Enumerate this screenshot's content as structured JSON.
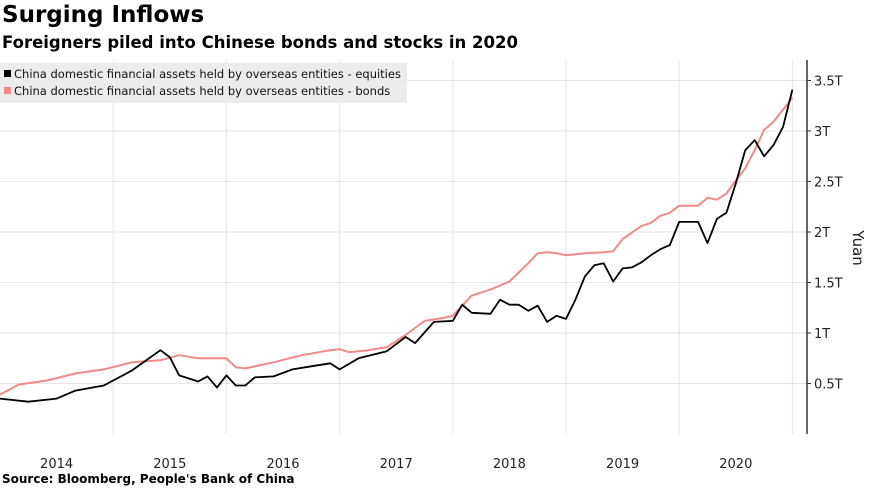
{
  "title": "Surging Inflows",
  "subtitle": "Foreigners piled into Chinese bonds and stocks in 2020",
  "source": "Source: Bloomberg, People's Bank of China",
  "chart_data": {
    "type": "line",
    "title": "Surging Inflows",
    "ylabel": "Yuan",
    "ylim": [
      0,
      3.7
    ],
    "y_ticks": [
      {
        "v": 0.5,
        "label": "0.5T"
      },
      {
        "v": 1,
        "label": "1T"
      },
      {
        "v": 1.5,
        "label": "1.5T"
      },
      {
        "v": 2,
        "label": "2T"
      },
      {
        "v": 2.5,
        "label": "2.5T"
      },
      {
        "v": 3,
        "label": "3T"
      },
      {
        "v": 3.5,
        "label": "3.5T"
      }
    ],
    "x_ticks": [
      "2014",
      "2015",
      "2016",
      "2017",
      "2018",
      "2019",
      "2020"
    ],
    "xlim": [
      "2014-01",
      "2021-02"
    ],
    "y_axis_position": "right",
    "grid": true,
    "legend_position": "top-left",
    "series": [
      {
        "name": "China domestic financial assets held by overseas entities - equities",
        "color": "#000000",
        "points": [
          [
            "2014-01",
            0.35
          ],
          [
            "2014-04",
            0.32
          ],
          [
            "2014-07",
            0.35
          ],
          [
            "2014-09",
            0.43
          ],
          [
            "2014-12",
            0.48
          ],
          [
            "2015-03",
            0.63
          ],
          [
            "2015-06",
            0.83
          ],
          [
            "2015-07",
            0.76
          ],
          [
            "2015-08",
            0.58
          ],
          [
            "2015-10",
            0.52
          ],
          [
            "2015-11",
            0.57
          ],
          [
            "2015-12",
            0.46
          ],
          [
            "2016-01",
            0.58
          ],
          [
            "2016-02",
            0.48
          ],
          [
            "2016-03",
            0.48
          ],
          [
            "2016-04",
            0.56
          ],
          [
            "2016-06",
            0.57
          ],
          [
            "2016-08",
            0.64
          ],
          [
            "2016-10",
            0.67
          ],
          [
            "2016-12",
            0.7
          ],
          [
            "2017-01",
            0.64
          ],
          [
            "2017-03",
            0.75
          ],
          [
            "2017-06",
            0.82
          ],
          [
            "2017-08",
            0.96
          ],
          [
            "2017-09",
            0.9
          ],
          [
            "2017-11",
            1.11
          ],
          [
            "2018-01",
            1.12
          ],
          [
            "2018-02",
            1.28
          ],
          [
            "2018-03",
            1.2
          ],
          [
            "2018-05",
            1.19
          ],
          [
            "2018-06",
            1.33
          ],
          [
            "2018-07",
            1.28
          ],
          [
            "2018-08",
            1.28
          ],
          [
            "2018-09",
            1.22
          ],
          [
            "2018-10",
            1.27
          ],
          [
            "2018-11",
            1.11
          ],
          [
            "2018-12",
            1.17
          ],
          [
            "2019-01",
            1.14
          ],
          [
            "2019-02",
            1.33
          ],
          [
            "2019-03",
            1.56
          ],
          [
            "2019-04",
            1.67
          ],
          [
            "2019-05",
            1.69
          ],
          [
            "2019-06",
            1.51
          ],
          [
            "2019-07",
            1.64
          ],
          [
            "2019-08",
            1.65
          ],
          [
            "2019-09",
            1.7
          ],
          [
            "2019-10",
            1.77
          ],
          [
            "2019-11",
            1.83
          ],
          [
            "2019-12",
            1.87
          ],
          [
            "2020-01",
            2.1
          ],
          [
            "2020-02",
            2.1
          ],
          [
            "2020-03",
            2.1
          ],
          [
            "2020-04",
            1.89
          ],
          [
            "2020-05",
            2.13
          ],
          [
            "2020-06",
            2.19
          ],
          [
            "2020-07",
            2.48
          ],
          [
            "2020-08",
            2.81
          ],
          [
            "2020-09",
            2.91
          ],
          [
            "2020-10",
            2.75
          ],
          [
            "2020-11",
            2.86
          ],
          [
            "2020-12",
            3.04
          ],
          [
            "2021-01",
            3.41
          ]
        ]
      },
      {
        "name": "China domestic financial assets held by overseas entities - bonds",
        "color": "#f08a8a",
        "points": [
          [
            "2014-01",
            0.39
          ],
          [
            "2014-03",
            0.49
          ],
          [
            "2014-06",
            0.53
          ],
          [
            "2014-09",
            0.6
          ],
          [
            "2014-12",
            0.64
          ],
          [
            "2015-03",
            0.71
          ],
          [
            "2015-06",
            0.73
          ],
          [
            "2015-08",
            0.78
          ],
          [
            "2015-10",
            0.75
          ],
          [
            "2015-12",
            0.75
          ],
          [
            "2016-01",
            0.75
          ],
          [
            "2016-02",
            0.66
          ],
          [
            "2016-03",
            0.65
          ],
          [
            "2016-06",
            0.71
          ],
          [
            "2016-09",
            0.78
          ],
          [
            "2016-12",
            0.83
          ],
          [
            "2017-01",
            0.84
          ],
          [
            "2017-02",
            0.81
          ],
          [
            "2017-04",
            0.83
          ],
          [
            "2017-06",
            0.86
          ],
          [
            "2017-08",
            0.98
          ],
          [
            "2017-10",
            1.12
          ],
          [
            "2017-12",
            1.15
          ],
          [
            "2018-01",
            1.17
          ],
          [
            "2018-03",
            1.37
          ],
          [
            "2018-05",
            1.43
          ],
          [
            "2018-07",
            1.51
          ],
          [
            "2018-09",
            1.69
          ],
          [
            "2018-10",
            1.79
          ],
          [
            "2018-11",
            1.8
          ],
          [
            "2018-12",
            1.79
          ],
          [
            "2019-01",
            1.77
          ],
          [
            "2019-03",
            1.79
          ],
          [
            "2019-05",
            1.8
          ],
          [
            "2019-06",
            1.81
          ],
          [
            "2019-07",
            1.93
          ],
          [
            "2019-09",
            2.06
          ],
          [
            "2019-10",
            2.09
          ],
          [
            "2019-11",
            2.16
          ],
          [
            "2019-12",
            2.19
          ],
          [
            "2020-01",
            2.26
          ],
          [
            "2020-03",
            2.26
          ],
          [
            "2020-04",
            2.34
          ],
          [
            "2020-05",
            2.32
          ],
          [
            "2020-06",
            2.38
          ],
          [
            "2020-07",
            2.51
          ],
          [
            "2020-08",
            2.63
          ],
          [
            "2020-09",
            2.81
          ],
          [
            "2020-10",
            3.01
          ],
          [
            "2020-11",
            3.09
          ],
          [
            "2020-12",
            3.21
          ],
          [
            "2021-01",
            3.33
          ]
        ]
      }
    ]
  }
}
